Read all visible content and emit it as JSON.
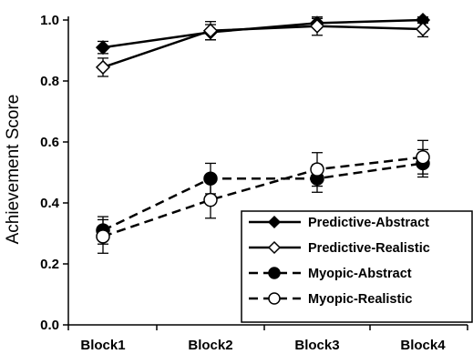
{
  "chart_data": {
    "type": "line",
    "title": "",
    "xlabel": "",
    "ylabel": "Achievement Score",
    "categories": [
      "Block1",
      "Block2",
      "Block3",
      "Block4"
    ],
    "ylim": [
      0.0,
      1.0
    ],
    "yticks": [
      "0.0",
      "0.2",
      "0.4",
      "0.6",
      "0.8",
      "1.0"
    ],
    "grid": false,
    "legend_position": "bottom-right",
    "series": [
      {
        "name": "Predictive-Abstract",
        "values": [
          0.91,
          0.96,
          0.99,
          1.0
        ],
        "errors": [
          0.02,
          0.025,
          0.015,
          0.01
        ],
        "line_style": "solid",
        "marker": "diamond",
        "marker_fill": "#000000"
      },
      {
        "name": "Predictive-Realistic",
        "values": [
          0.845,
          0.965,
          0.98,
          0.97
        ],
        "errors": [
          0.03,
          0.03,
          0.03,
          0.025
        ],
        "line_style": "solid",
        "marker": "diamond",
        "marker_fill": "#ffffff"
      },
      {
        "name": "Myopic-Abstract",
        "values": [
          0.31,
          0.48,
          0.48,
          0.53
        ],
        "errors": [
          0.045,
          0.05,
          0.045,
          0.045
        ],
        "line_style": "dashed",
        "marker": "circle",
        "marker_fill": "#000000"
      },
      {
        "name": "Myopic-Realistic",
        "values": [
          0.29,
          0.41,
          0.51,
          0.55
        ],
        "errors": [
          0.055,
          0.06,
          0.055,
          0.055
        ],
        "line_style": "dashed",
        "marker": "circle",
        "marker_fill": "#ffffff"
      }
    ]
  }
}
